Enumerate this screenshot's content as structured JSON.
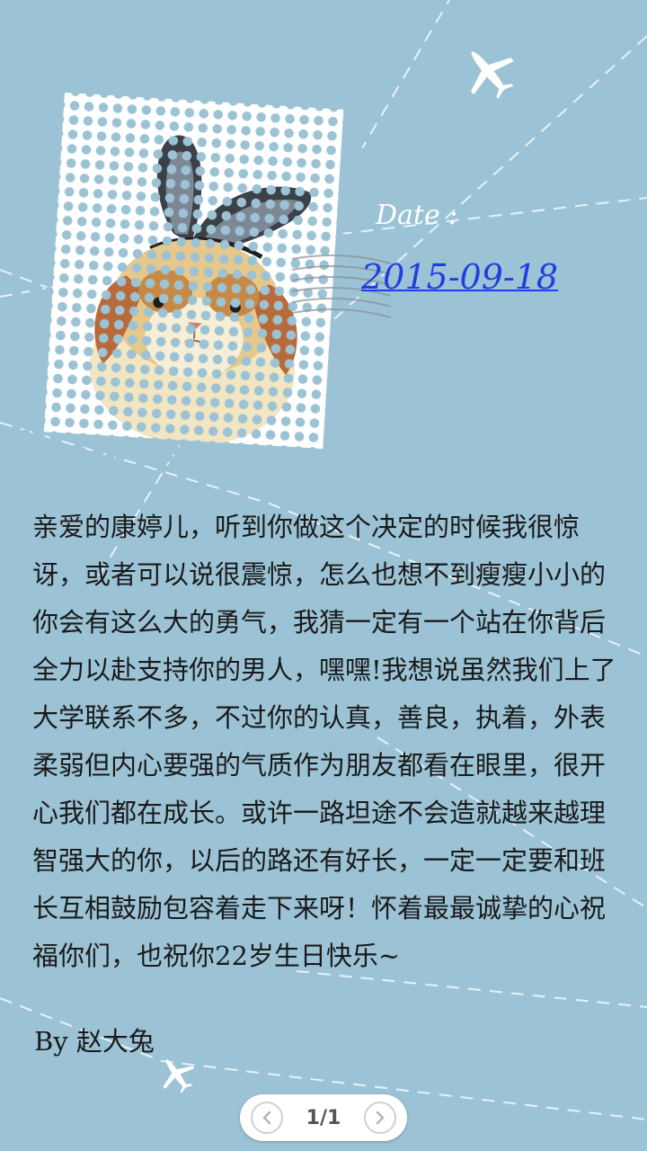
{
  "date": {
    "label": "Date :",
    "value": "2015-09-18"
  },
  "letter": {
    "body": "亲爱的康婷儿，听到你做这个决定的时候我很惊讶，或者可以说很震惊，怎么也想不到瘦瘦小小的你会有这么大的勇气，我猜一定有一个站在你背后全力以赴支持你的男人，嘿嘿!我想说虽然我们上了大学联系不多，不过你的认真，善良，执着，外表柔弱但内心要强的气质作为朋友都看在眼里，很开心我们都在成长。或许一路坦途不会造就越来越理智强大的你，以后的路还有好长，一定一定要和班长互相鼓励包容着走下来呀！怀着最最诚挚的心祝福你们，也祝你22岁生日快乐~",
    "signature": "By 赵大兔"
  },
  "pager": {
    "text": "1/1"
  },
  "colors": {
    "background": "#9cc3d5",
    "date_value": "#1f3fe0"
  },
  "icons": {
    "airplane": "airplane-icon",
    "prev": "chevron-left-icon",
    "next": "chevron-right-icon"
  }
}
